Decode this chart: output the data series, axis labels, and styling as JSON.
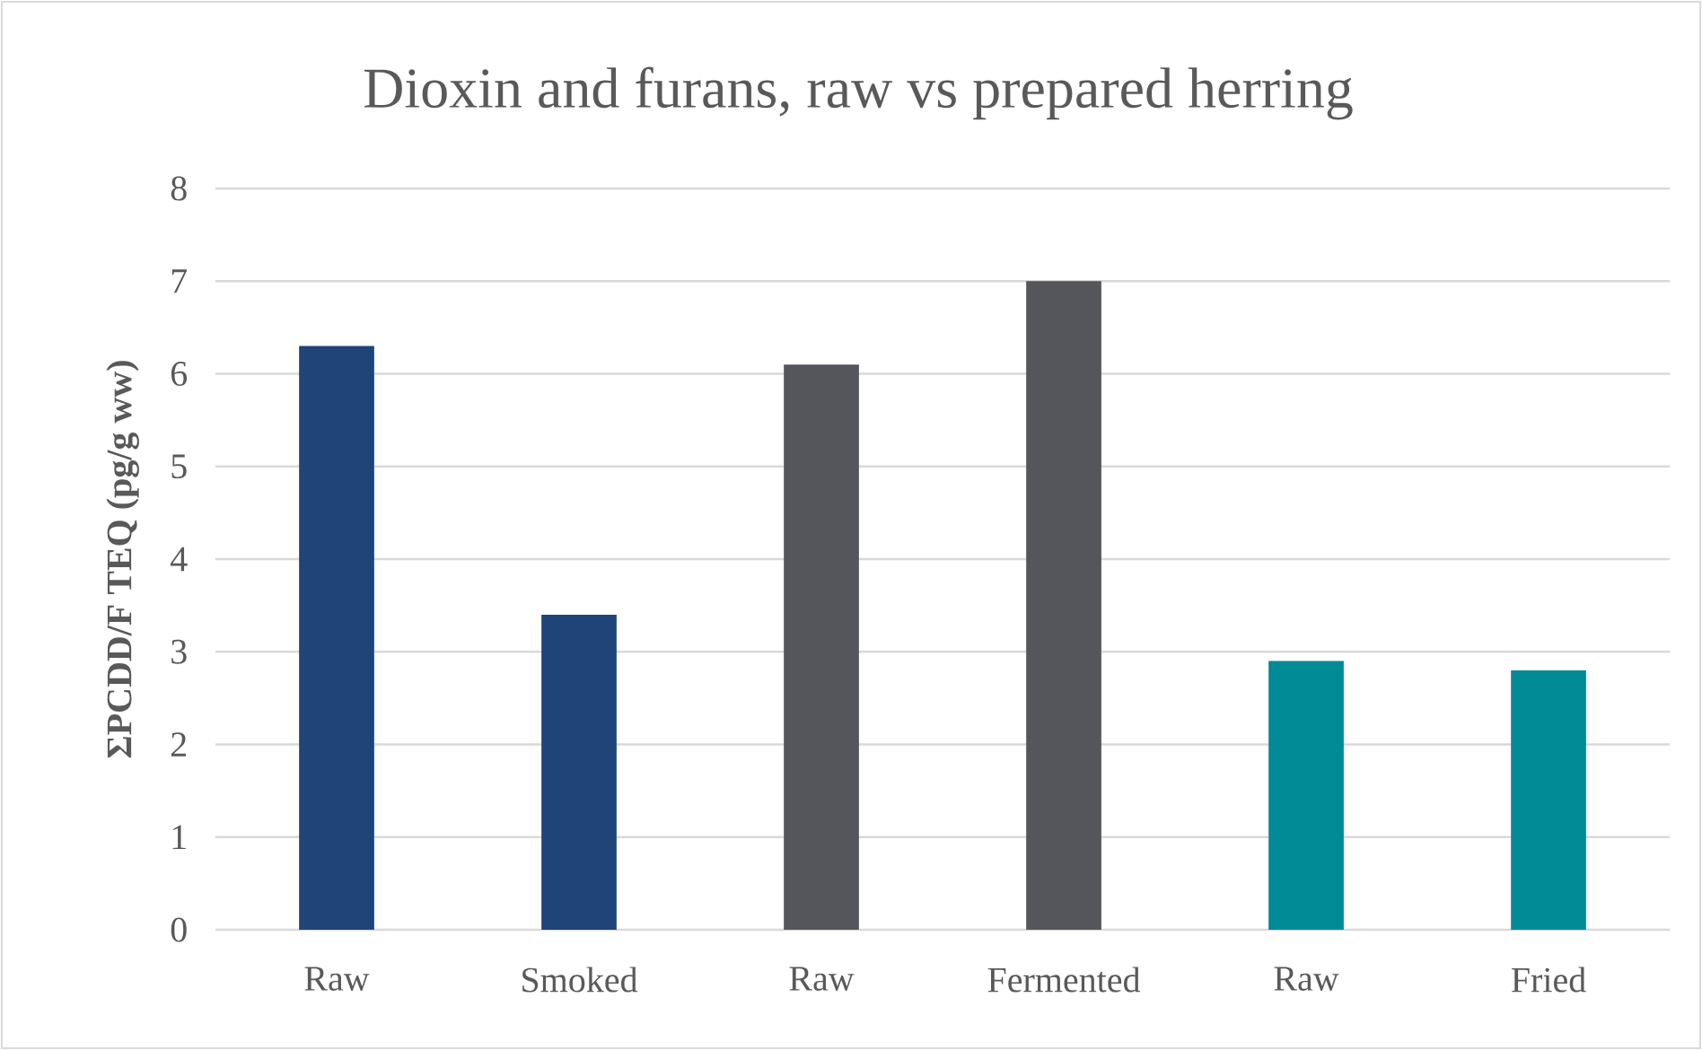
{
  "chart_data": {
    "type": "bar",
    "title": "Dioxin and furans, raw vs prepared herring",
    "ylabel": "ΣPCDD/F TEQ (pg/g ww)",
    "categories": [
      "Raw",
      "Smoked",
      "Raw",
      "Fermented",
      "Raw",
      "Fried"
    ],
    "values": [
      6.3,
      3.4,
      6.1,
      7.0,
      2.9,
      2.8
    ],
    "colors": [
      "#1f4578",
      "#1f4578",
      "#54565b",
      "#54565b",
      "#008b96",
      "#008b96"
    ],
    "ylim": [
      0,
      8
    ],
    "yticks": [
      0,
      1,
      2,
      3,
      4,
      5,
      6,
      7,
      8
    ],
    "grid": "y"
  }
}
